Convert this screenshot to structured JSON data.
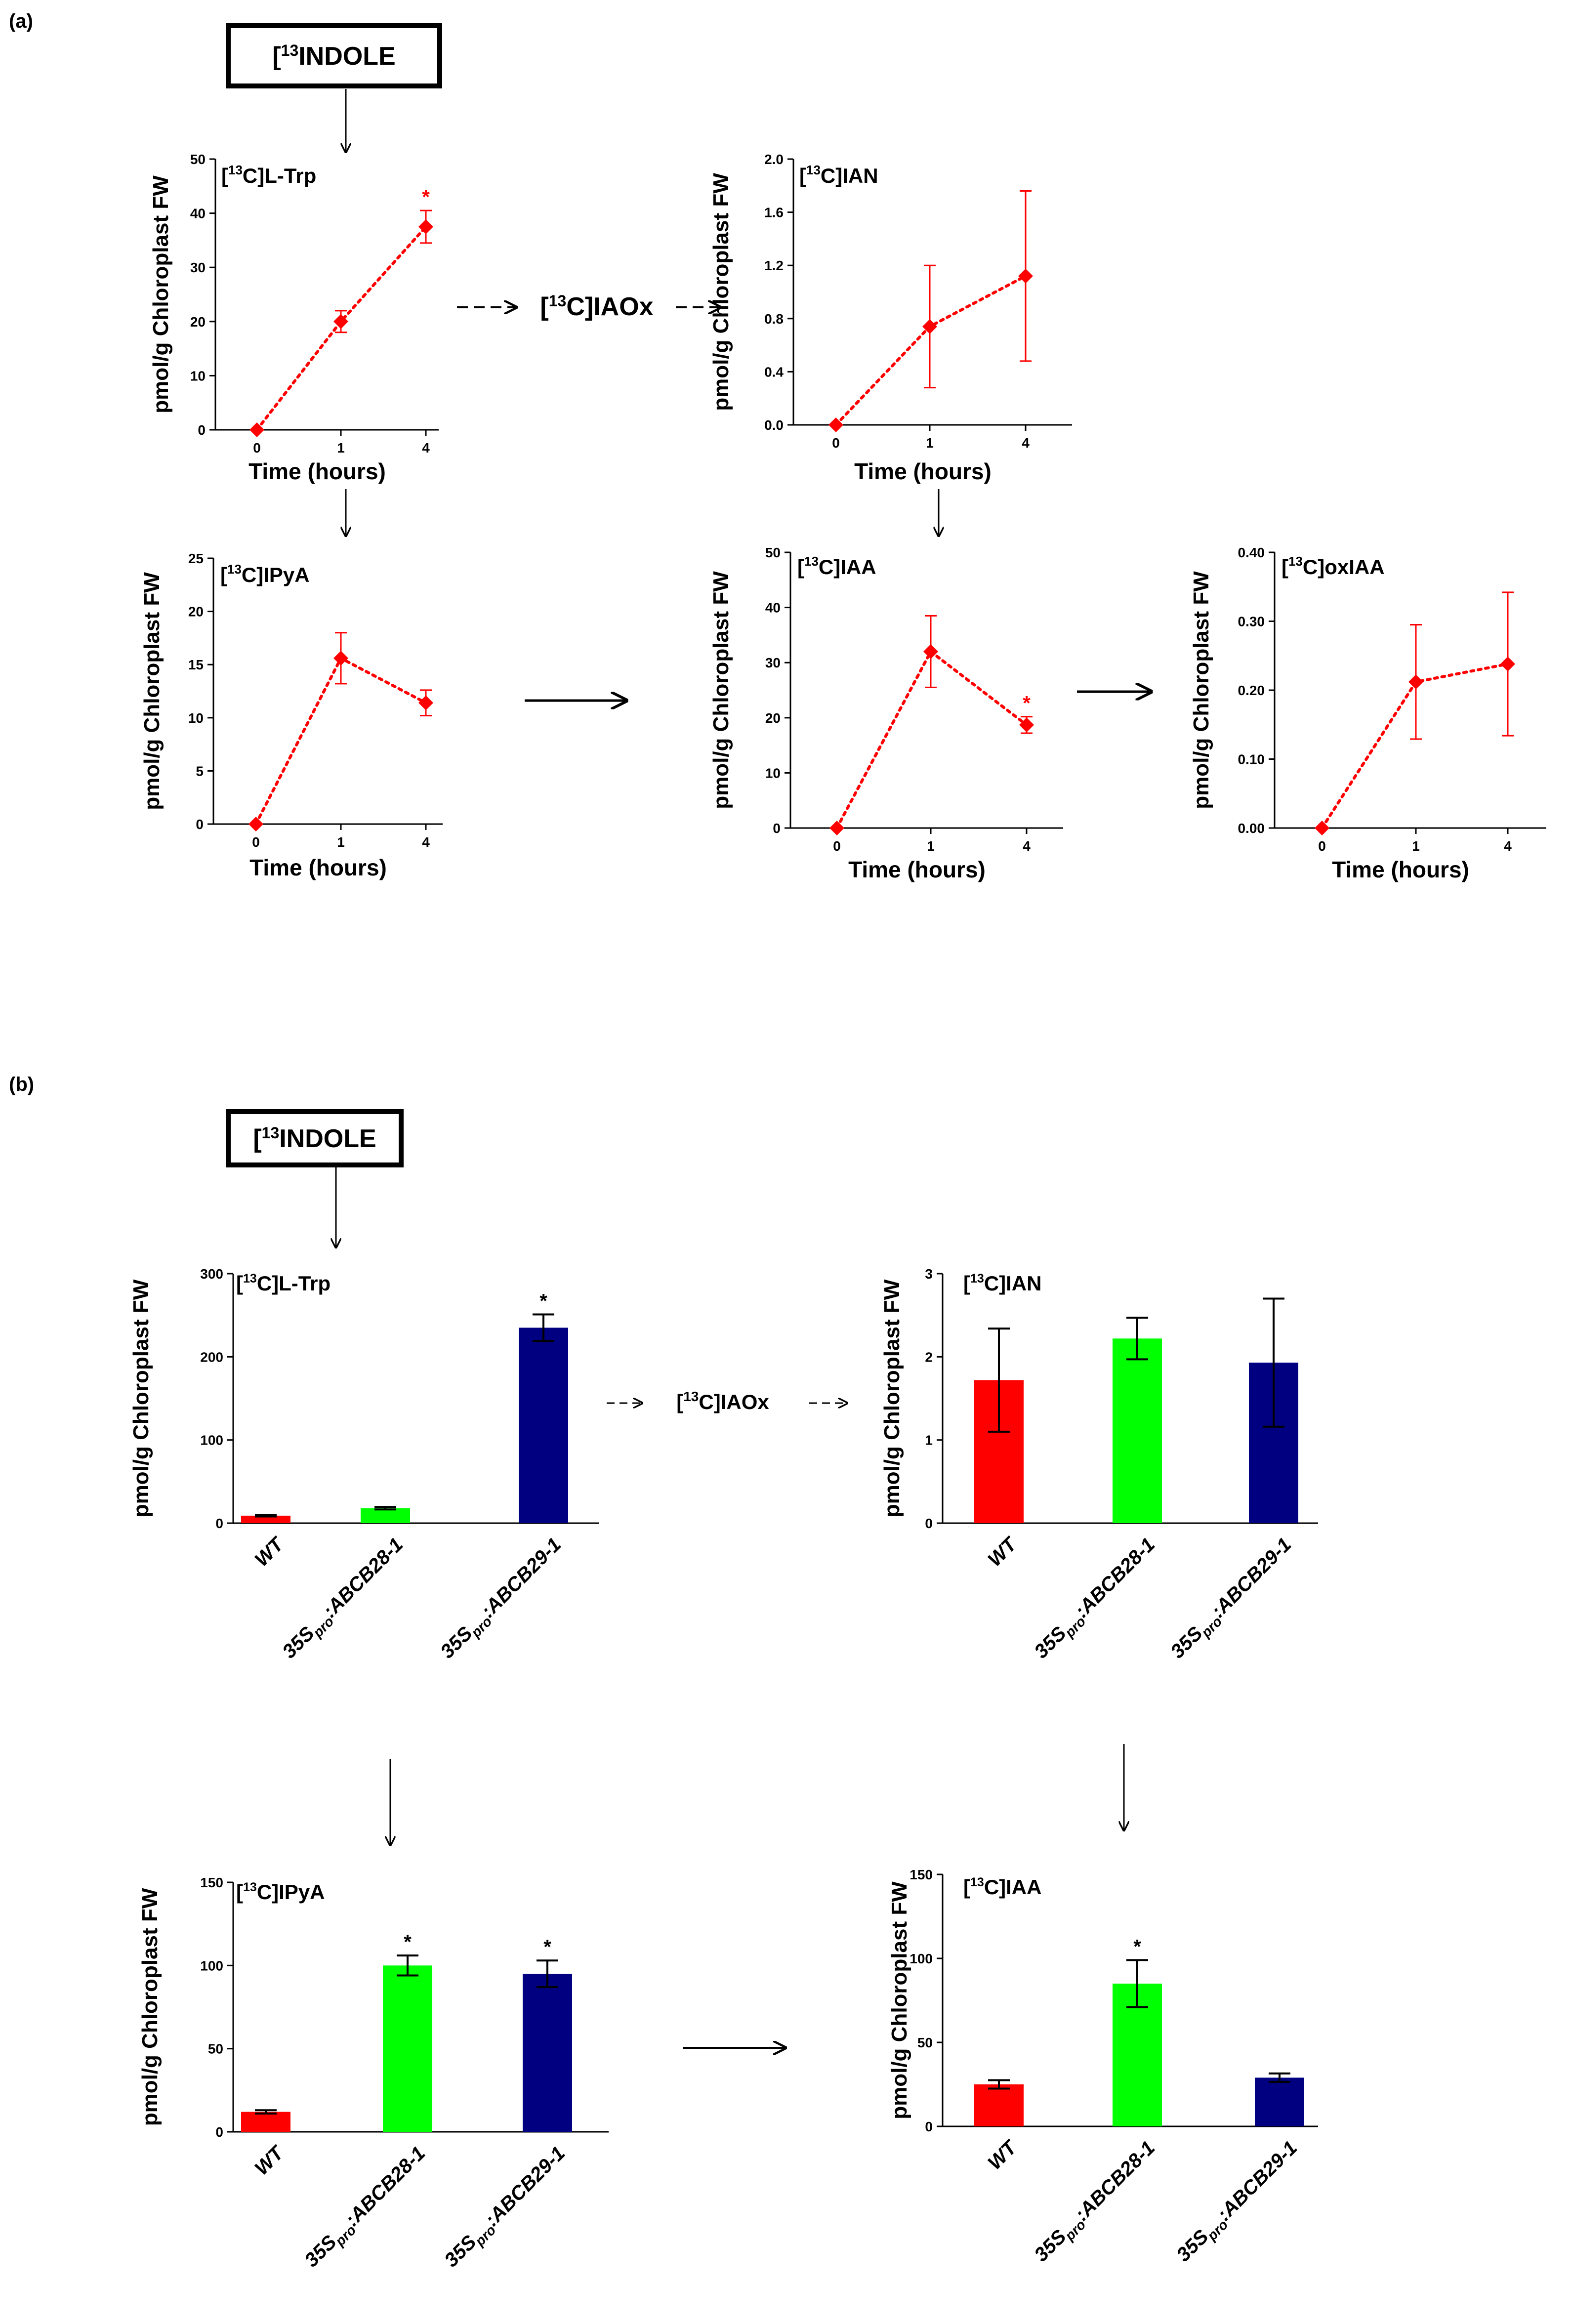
{
  "panels": {
    "a": {
      "label": "(a)",
      "source_box": "INDOLE",
      "intermediate": "IAOx"
    },
    "b": {
      "label": "(b)",
      "source_box": "INDOLE",
      "intermediate": "IAOx"
    }
  },
  "isotope": "13",
  "colors": {
    "red": "#ff0000",
    "green": "#00ff00",
    "navy": "#000080",
    "axis": "#000000"
  },
  "chart_data": [
    {
      "id": "a-trp",
      "type": "line",
      "panel": "a",
      "title_prefix": "[",
      "title_suffix": "C]L-Trp",
      "xlabel": "Time (hours)",
      "ylabel": "pmol/g Chloroplast FW",
      "x": [
        "0",
        "1",
        "4"
      ],
      "values": [
        0,
        20,
        37.5
      ],
      "errors": [
        0,
        2,
        3
      ],
      "significant": [
        false,
        false,
        true
      ],
      "ylim": [
        0,
        50
      ],
      "yticks": [
        "0",
        "10",
        "20",
        "30",
        "40",
        "50"
      ],
      "color": "#ff0000"
    },
    {
      "id": "a-ian",
      "type": "line",
      "panel": "a",
      "title_prefix": "[",
      "title_suffix": "C]IAN",
      "xlabel": "Time (hours)",
      "ylabel": "pmol/g Chloroplast FW",
      "x": [
        "0",
        "1",
        "4"
      ],
      "values": [
        0,
        0.74,
        1.12
      ],
      "errors": [
        0,
        0.46,
        0.64
      ],
      "significant": [
        false,
        false,
        false
      ],
      "ylim": [
        0,
        2.0
      ],
      "yticks": [
        "0.0",
        "0.4",
        "0.8",
        "1.2",
        "1.6",
        "2.0"
      ],
      "color": "#ff0000"
    },
    {
      "id": "a-ipya",
      "type": "line",
      "panel": "a",
      "title_prefix": "[",
      "title_suffix": "C]IPyA",
      "xlabel": "Time (hours)",
      "ylabel": "pmol/g Chloroplast FW",
      "x": [
        "0",
        "1",
        "4"
      ],
      "values": [
        0,
        15.6,
        11.4
      ],
      "errors": [
        0,
        2.4,
        1.2
      ],
      "significant": [
        false,
        false,
        false
      ],
      "ylim": [
        0,
        25
      ],
      "yticks": [
        "0",
        "5",
        "10",
        "15",
        "20",
        "25"
      ],
      "color": "#ff0000"
    },
    {
      "id": "a-iaa",
      "type": "line",
      "panel": "a",
      "title_prefix": "[",
      "title_suffix": "C]IAA",
      "xlabel": "Time (hours)",
      "ylabel": "pmol/g Chloroplast FW",
      "x": [
        "0",
        "1",
        "4"
      ],
      "values": [
        0,
        32,
        18.7
      ],
      "errors": [
        0,
        6.5,
        1.5
      ],
      "significant": [
        false,
        false,
        true
      ],
      "ylim": [
        0,
        50
      ],
      "yticks": [
        "0",
        "10",
        "20",
        "30",
        "40",
        "50"
      ],
      "color": "#ff0000"
    },
    {
      "id": "a-oxiaa",
      "type": "line",
      "panel": "a",
      "title_prefix": "[",
      "title_suffix": "C]oxIAA",
      "xlabel": "Time (hours)",
      "ylabel": "pmol/g Chloroplast FW",
      "x": [
        "0",
        "1",
        "4"
      ],
      "values": [
        0,
        0.212,
        0.238
      ],
      "errors": [
        0,
        0.083,
        0.104
      ],
      "significant": [
        false,
        false,
        false
      ],
      "ylim": [
        0,
        0.4
      ],
      "yticks": [
        "0.00",
        "0.10",
        "0.20",
        "0.30",
        "0.40"
      ],
      "color": "#ff0000"
    },
    {
      "id": "b-trp",
      "type": "bar",
      "panel": "b",
      "title_prefix": "[",
      "title_suffix": "C]L-Trp",
      "ylabel": "pmol/g Chloroplast FW",
      "categories": [
        "WT",
        "ABCB28-1",
        "ABCB29-1"
      ],
      "category_prefix": "35S",
      "category_sub": "pro",
      "category_sep": ":",
      "values": [
        9,
        18,
        235
      ],
      "errors": [
        1,
        1.5,
        16
      ],
      "significant": [
        false,
        false,
        true
      ],
      "ylim": [
        0,
        300
      ],
      "yticks": [
        "0",
        "100",
        "200",
        "300"
      ],
      "colors": [
        "#ff0000",
        "#00ff00",
        "#000080"
      ]
    },
    {
      "id": "b-ian",
      "type": "bar",
      "panel": "b",
      "title_prefix": "[",
      "title_suffix": "C]IAN",
      "ylabel": "pmol/g Chloroplast FW",
      "categories": [
        "WT",
        "ABCB28-1",
        "ABCB29-1"
      ],
      "category_prefix": "35S",
      "category_sub": "pro",
      "category_sep": ":",
      "values": [
        1.72,
        2.22,
        1.93
      ],
      "errors": [
        0.62,
        0.25,
        0.77
      ],
      "significant": [
        false,
        false,
        false
      ],
      "ylim": [
        0,
        3
      ],
      "yticks": [
        "0",
        "1",
        "2",
        "3"
      ],
      "colors": [
        "#ff0000",
        "#00ff00",
        "#000080"
      ]
    },
    {
      "id": "b-ipya",
      "type": "bar",
      "panel": "b",
      "title_prefix": "[",
      "title_suffix": "C]IPyA",
      "ylabel": "pmol/g Chloroplast FW",
      "categories": [
        "WT",
        "ABCB28-1",
        "ABCB29-1"
      ],
      "category_prefix": "35S",
      "category_sub": "pro",
      "category_sep": ":",
      "values": [
        12,
        100,
        95
      ],
      "errors": [
        1,
        6,
        8
      ],
      "significant": [
        false,
        true,
        true
      ],
      "ylim": [
        0,
        150
      ],
      "yticks": [
        "0",
        "50",
        "100",
        "150"
      ],
      "colors": [
        "#ff0000",
        "#00ff00",
        "#000080"
      ]
    },
    {
      "id": "b-iaa",
      "type": "bar",
      "panel": "b",
      "title_prefix": "[",
      "title_suffix": "C]IAA",
      "ylabel": "pmol/g Chloroplast FW",
      "categories": [
        "WT",
        "ABCB28-1",
        "ABCB29-1"
      ],
      "category_prefix": "35S",
      "category_sub": "pro",
      "category_sep": ":",
      "values": [
        25,
        85,
        29
      ],
      "errors": [
        2.5,
        14,
        2.5
      ],
      "significant": [
        false,
        true,
        false
      ],
      "ylim": [
        0,
        150
      ],
      "yticks": [
        "0",
        "50",
        "100",
        "150"
      ],
      "colors": [
        "#ff0000",
        "#00ff00",
        "#000080"
      ]
    }
  ]
}
